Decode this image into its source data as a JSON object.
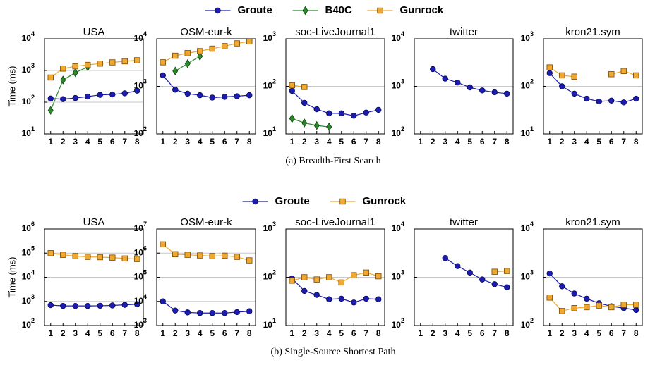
{
  "captions": [
    "(a) Breadth-First Search",
    "(b) Single-Source Shortest Path"
  ],
  "chart_data": [
    {
      "type": "line",
      "title": "USA",
      "ylabel": "Time (ms)",
      "log_y": true,
      "grid": true,
      "x": [
        1,
        2,
        3,
        4,
        5,
        6,
        7,
        8
      ],
      "xlim": [
        0.5,
        8.5
      ],
      "xticks": [
        1,
        2,
        3,
        4,
        5,
        6,
        7,
        8
      ],
      "ylim": [
        10,
        10000
      ],
      "yticks": [
        {
          "value": 10,
          "label": "10^1"
        },
        {
          "value": 100,
          "label": "10^2"
        },
        {
          "value": 1000,
          "label": "10^3"
        },
        {
          "value": 10000,
          "label": "10^4"
        }
      ],
      "series": [
        {
          "name": "Groute",
          "color": "#1c1cb0",
          "marker": "circle",
          "values": [
            130,
            125,
            135,
            150,
            170,
            175,
            190,
            230
          ]
        },
        {
          "name": "B40C",
          "color": "#2a8a2a",
          "marker": "diamond",
          "values": [
            55,
            500,
            850,
            1300,
            null,
            null,
            null,
            null
          ]
        },
        {
          "name": "Gunrock",
          "color": "#f0a830",
          "marker": "square",
          "values": [
            600,
            1150,
            1350,
            1500,
            1650,
            1800,
            1950,
            2100
          ]
        }
      ]
    },
    {
      "type": "line",
      "title": "OSM-eur-k",
      "log_y": true,
      "grid": true,
      "x": [
        1,
        2,
        3,
        4,
        5,
        6,
        7,
        8
      ],
      "xlim": [
        0.5,
        8.5
      ],
      "xticks": [
        1,
        2,
        3,
        4,
        5,
        6,
        7,
        8
      ],
      "ylim": [
        100,
        10000
      ],
      "yticks": [
        {
          "value": 100,
          "label": "10^2"
        },
        {
          "value": 1000,
          "label": "10^3"
        },
        {
          "value": 10000,
          "label": "10^4"
        }
      ],
      "series": [
        {
          "name": "Groute",
          "color": "#1c1cb0",
          "marker": "circle",
          "values": [
            1700,
            850,
            700,
            650,
            580,
            600,
            620,
            650
          ]
        },
        {
          "name": "B40C",
          "color": "#2a8a2a",
          "marker": "diamond",
          "values": [
            null,
            2100,
            3000,
            4300,
            null,
            null,
            null,
            null
          ]
        },
        {
          "name": "Gunrock",
          "color": "#f0a830",
          "marker": "square",
          "values": [
            3200,
            4400,
            5000,
            5500,
            6200,
            7000,
            8000,
            8800
          ]
        }
      ]
    },
    {
      "type": "line",
      "title": "soc-LiveJournal1",
      "log_y": true,
      "grid": true,
      "x": [
        1,
        2,
        3,
        4,
        5,
        6,
        7,
        8
      ],
      "xlim": [
        0.5,
        8.5
      ],
      "xticks": [
        1,
        2,
        3,
        4,
        5,
        6,
        7,
        8
      ],
      "ylim": [
        10,
        1000
      ],
      "yticks": [
        {
          "value": 10,
          "label": "10^1"
        },
        {
          "value": 100,
          "label": "10^2"
        },
        {
          "value": 1000,
          "label": "10^3"
        }
      ],
      "series": [
        {
          "name": "Groute",
          "color": "#1c1cb0",
          "marker": "circle",
          "values": [
            80,
            45,
            33,
            27,
            27,
            24,
            28,
            32
          ]
        },
        {
          "name": "B40C",
          "color": "#2a8a2a",
          "marker": "diamond",
          "values": [
            21,
            17,
            15,
            14,
            null,
            null,
            null,
            null
          ]
        },
        {
          "name": "Gunrock",
          "color": "#f0a830",
          "marker": "square",
          "values": [
            105,
            97,
            null,
            null,
            null,
            null,
            null,
            null
          ]
        }
      ]
    },
    {
      "type": "line",
      "title": "twitter",
      "log_y": true,
      "grid": true,
      "x": [
        1,
        2,
        3,
        4,
        5,
        6,
        7,
        8
      ],
      "xlim": [
        0.5,
        8.5
      ],
      "xticks": [
        1,
        2,
        3,
        4,
        5,
        6,
        7,
        8
      ],
      "ylim": [
        100,
        10000
      ],
      "yticks": [
        {
          "value": 100,
          "label": "10^2"
        },
        {
          "value": 1000,
          "label": "10^3"
        },
        {
          "value": 10000,
          "label": "10^4"
        }
      ],
      "series": [
        {
          "name": "Groute",
          "color": "#1c1cb0",
          "marker": "circle",
          "values": [
            null,
            2300,
            1450,
            1200,
            950,
            820,
            750,
            700
          ]
        }
      ]
    },
    {
      "type": "line",
      "title": "kron21.sym",
      "log_y": true,
      "grid": true,
      "x": [
        1,
        2,
        3,
        4,
        5,
        6,
        7,
        8
      ],
      "xlim": [
        0.5,
        8.5
      ],
      "xticks": [
        1,
        2,
        3,
        4,
        5,
        6,
        7,
        8
      ],
      "ylim": [
        10,
        1000
      ],
      "yticks": [
        {
          "value": 10,
          "label": "10^1"
        },
        {
          "value": 100,
          "label": "10^2"
        },
        {
          "value": 1000,
          "label": "10^3"
        }
      ],
      "series": [
        {
          "name": "Groute",
          "color": "#1c1cb0",
          "marker": "circle",
          "values": [
            190,
            100,
            70,
            55,
            48,
            50,
            46,
            55
          ]
        },
        {
          "name": "Gunrock",
          "color": "#f0a830",
          "marker": "square",
          "values": [
            250,
            170,
            160,
            null,
            null,
            180,
            210,
            170
          ]
        }
      ]
    },
    {
      "type": "line",
      "title": "USA",
      "ylabel": "Time (ms)",
      "log_y": true,
      "grid": true,
      "x": [
        1,
        2,
        3,
        4,
        5,
        6,
        7,
        8
      ],
      "xlim": [
        0.5,
        8.5
      ],
      "xticks": [
        1,
        2,
        3,
        4,
        5,
        6,
        7,
        8
      ],
      "ylim": [
        100,
        1000000
      ],
      "yticks": [
        {
          "value": 100,
          "label": "10^2"
        },
        {
          "value": 1000,
          "label": "10^3"
        },
        {
          "value": 10000,
          "label": "10^4"
        },
        {
          "value": 100000,
          "label": "10^5"
        },
        {
          "value": 1000000,
          "label": "10^6"
        }
      ],
      "series": [
        {
          "name": "Groute",
          "color": "#1c1cb0",
          "marker": "circle",
          "values": [
            700,
            650,
            650,
            650,
            660,
            680,
            720,
            760
          ]
        },
        {
          "name": "Gunrock",
          "color": "#f0a830",
          "marker": "square",
          "values": [
            100000,
            85000,
            75000,
            70000,
            68000,
            65000,
            60000,
            57000
          ]
        }
      ]
    },
    {
      "type": "line",
      "title": "OSM-eur-k",
      "log_y": true,
      "grid": true,
      "x": [
        1,
        2,
        3,
        4,
        5,
        6,
        7,
        8
      ],
      "xlim": [
        0.5,
        8.5
      ],
      "xticks": [
        1,
        2,
        3,
        4,
        5,
        6,
        7,
        8
      ],
      "ylim": [
        1000,
        10000000
      ],
      "yticks": [
        {
          "value": 1000,
          "label": "10^3"
        },
        {
          "value": 10000,
          "label": "10^4"
        },
        {
          "value": 100000,
          "label": "10^5"
        },
        {
          "value": 1000000,
          "label": "10^6"
        },
        {
          "value": 10000000,
          "label": "10^7"
        }
      ],
      "series": [
        {
          "name": "Groute",
          "color": "#1c1cb0",
          "marker": "circle",
          "values": [
            10000,
            4200,
            3500,
            3300,
            3300,
            3300,
            3600,
            3900
          ]
        },
        {
          "name": "Gunrock",
          "color": "#f0a830",
          "marker": "square",
          "values": [
            2300000,
            900000,
            850000,
            800000,
            750000,
            780000,
            700000,
            500000
          ]
        }
      ]
    },
    {
      "type": "line",
      "title": "soc-LiveJournal1",
      "log_y": true,
      "grid": true,
      "x": [
        1,
        2,
        3,
        4,
        5,
        6,
        7,
        8
      ],
      "xlim": [
        0.5,
        8.5
      ],
      "xticks": [
        1,
        2,
        3,
        4,
        5,
        6,
        7,
        8
      ],
      "ylim": [
        10,
        1000
      ],
      "yticks": [
        {
          "value": 10,
          "label": "10^1"
        },
        {
          "value": 100,
          "label": "10^2"
        },
        {
          "value": 1000,
          "label": "10^3"
        }
      ],
      "series": [
        {
          "name": "Groute",
          "color": "#1c1cb0",
          "marker": "circle",
          "values": [
            95,
            52,
            43,
            35,
            36,
            30,
            36,
            35
          ]
        },
        {
          "name": "Gunrock",
          "color": "#f0a830",
          "marker": "square",
          "values": [
            85,
            100,
            90,
            100,
            78,
            110,
            125,
            105
          ]
        }
      ]
    },
    {
      "type": "line",
      "title": "twitter",
      "log_y": true,
      "grid": true,
      "x": [
        1,
        2,
        3,
        4,
        5,
        6,
        7,
        8
      ],
      "xlim": [
        0.5,
        8.5
      ],
      "xticks": [
        1,
        2,
        3,
        4,
        5,
        6,
        7,
        8
      ],
      "ylim": [
        100,
        10000
      ],
      "yticks": [
        {
          "value": 100,
          "label": "10^2"
        },
        {
          "value": 1000,
          "label": "10^3"
        },
        {
          "value": 10000,
          "label": "10^4"
        }
      ],
      "series": [
        {
          "name": "Groute",
          "color": "#1c1cb0",
          "marker": "circle",
          "values": [
            null,
            null,
            2500,
            1700,
            1250,
            900,
            720,
            620
          ]
        },
        {
          "name": "Gunrock",
          "color": "#f0a830",
          "marker": "square",
          "values": [
            null,
            null,
            null,
            null,
            null,
            null,
            1300,
            1350
          ]
        }
      ]
    },
    {
      "type": "line",
      "title": "kron21.sym",
      "log_y": true,
      "grid": true,
      "x": [
        1,
        2,
        3,
        4,
        5,
        6,
        7,
        8
      ],
      "xlim": [
        0.5,
        8.5
      ],
      "xticks": [
        1,
        2,
        3,
        4,
        5,
        6,
        7,
        8
      ],
      "ylim": [
        100,
        10000
      ],
      "yticks": [
        {
          "value": 100,
          "label": "10^2"
        },
        {
          "value": 1000,
          "label": "10^3"
        },
        {
          "value": 10000,
          "label": "10^4"
        }
      ],
      "series": [
        {
          "name": "Groute",
          "color": "#1c1cb0",
          "marker": "circle",
          "values": [
            1200,
            650,
            460,
            360,
            290,
            250,
            230,
            210
          ]
        },
        {
          "name": "Gunrock",
          "color": "#f0a830",
          "marker": "square",
          "values": [
            380,
            200,
            230,
            240,
            260,
            240,
            270,
            270
          ]
        }
      ]
    }
  ]
}
